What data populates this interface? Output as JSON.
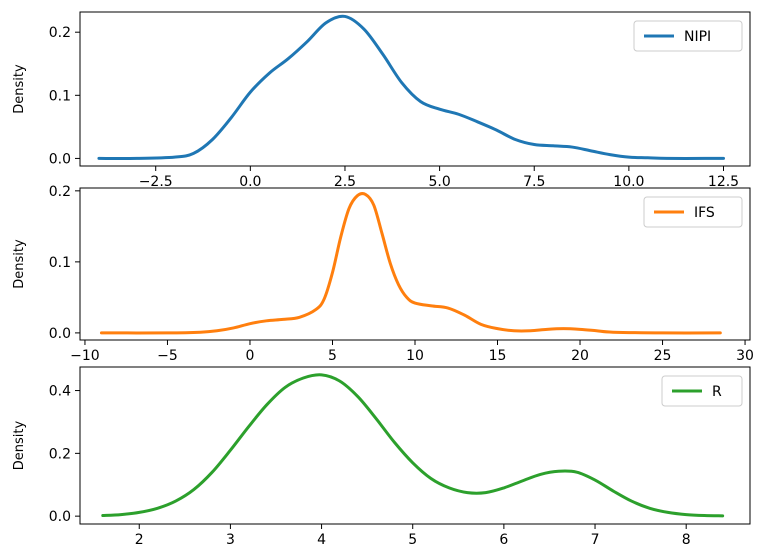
{
  "chart_data": [
    {
      "type": "line",
      "kind": "density",
      "ylabel": "Density",
      "xlim": [
        -4.5,
        13.2
      ],
      "ylim": [
        -0.012,
        0.232
      ],
      "xticks": [
        -2.5,
        0.0,
        2.5,
        5.0,
        7.5,
        10.0,
        12.5
      ],
      "xtick_labels": [
        "−2.5",
        "0.0",
        "2.5",
        "5.0",
        "7.5",
        "10.0",
        "12.5"
      ],
      "yticks": [
        0.0,
        0.1,
        0.2
      ],
      "ytick_labels": [
        "0.0",
        "0.1",
        "0.2"
      ],
      "legend_position": "top-right",
      "color": "#1f77b4",
      "series": [
        {
          "name": "NIPI",
          "x": [
            -4,
            -3,
            -2,
            -1.5,
            -1,
            -0.5,
            0,
            0.5,
            1,
            1.5,
            2,
            2.5,
            3,
            3.5,
            4,
            4.5,
            5,
            5.5,
            6,
            6.5,
            7,
            7.5,
            8,
            8.5,
            9,
            9.5,
            10,
            10.5,
            11,
            12,
            12.5
          ],
          "y": [
            0.0,
            0.0,
            0.002,
            0.008,
            0.03,
            0.065,
            0.105,
            0.135,
            0.158,
            0.185,
            0.215,
            0.225,
            0.205,
            0.165,
            0.12,
            0.09,
            0.078,
            0.07,
            0.058,
            0.045,
            0.03,
            0.022,
            0.02,
            0.018,
            0.012,
            0.006,
            0.002,
            0.001,
            0.0,
            0.0,
            0.0
          ]
        }
      ]
    },
    {
      "type": "line",
      "kind": "density",
      "ylabel": "Density",
      "xlim": [
        -10.3,
        30.3
      ],
      "ylim": [
        -0.01,
        0.204
      ],
      "xticks": [
        -10,
        -5,
        0,
        5,
        10,
        15,
        20,
        25,
        30
      ],
      "xtick_labels": [
        "−10",
        "−5",
        "0",
        "5",
        "10",
        "15",
        "20",
        "25",
        "30"
      ],
      "yticks": [
        0.0,
        0.1,
        0.2
      ],
      "ytick_labels": [
        "0.0",
        "0.1",
        "0.2"
      ],
      "legend_position": "top-right",
      "color": "#ff7f0e",
      "series": [
        {
          "name": "IFS",
          "x": [
            -9,
            -5,
            -3,
            -2,
            -1,
            0,
            1,
            2,
            3,
            4,
            4.5,
            5,
            5.5,
            6,
            6.5,
            7,
            7.5,
            8,
            8.5,
            9,
            9.5,
            10,
            11,
            12,
            13,
            14,
            15,
            16,
            17,
            18,
            19,
            20,
            21,
            22,
            25,
            28.5
          ],
          "y": [
            0.0,
            0.0,
            0.001,
            0.003,
            0.007,
            0.013,
            0.017,
            0.019,
            0.022,
            0.033,
            0.048,
            0.085,
            0.135,
            0.175,
            0.193,
            0.195,
            0.18,
            0.14,
            0.098,
            0.068,
            0.05,
            0.042,
            0.038,
            0.035,
            0.025,
            0.012,
            0.006,
            0.003,
            0.003,
            0.005,
            0.006,
            0.005,
            0.003,
            0.001,
            0.0,
            0.0
          ]
        }
      ]
    },
    {
      "type": "line",
      "kind": "density",
      "ylabel": "Density",
      "xlim": [
        1.35,
        8.7
      ],
      "ylim": [
        -0.025,
        0.475
      ],
      "xticks": [
        2,
        3,
        4,
        5,
        6,
        7,
        8
      ],
      "xtick_labels": [
        "2",
        "3",
        "4",
        "5",
        "6",
        "7",
        "8"
      ],
      "yticks": [
        0.0,
        0.2,
        0.4
      ],
      "ytick_labels": [
        "0.0",
        "0.2",
        "0.4"
      ],
      "legend_position": "top-right",
      "color": "#2ca02c",
      "series": [
        {
          "name": "R",
          "x": [
            1.6,
            1.8,
            2.0,
            2.2,
            2.4,
            2.6,
            2.8,
            3.0,
            3.2,
            3.4,
            3.6,
            3.8,
            4.0,
            4.2,
            4.4,
            4.6,
            4.8,
            5.0,
            5.2,
            5.4,
            5.6,
            5.8,
            6.0,
            6.2,
            6.4,
            6.6,
            6.8,
            7.0,
            7.2,
            7.4,
            7.6,
            7.8,
            8.0,
            8.2,
            8.4
          ],
          "y": [
            0.002,
            0.005,
            0.012,
            0.025,
            0.048,
            0.085,
            0.14,
            0.21,
            0.285,
            0.355,
            0.41,
            0.44,
            0.45,
            0.43,
            0.38,
            0.31,
            0.235,
            0.17,
            0.12,
            0.09,
            0.075,
            0.075,
            0.09,
            0.112,
            0.133,
            0.143,
            0.14,
            0.115,
            0.08,
            0.048,
            0.025,
            0.012,
            0.005,
            0.002,
            0.001
          ]
        }
      ]
    }
  ]
}
